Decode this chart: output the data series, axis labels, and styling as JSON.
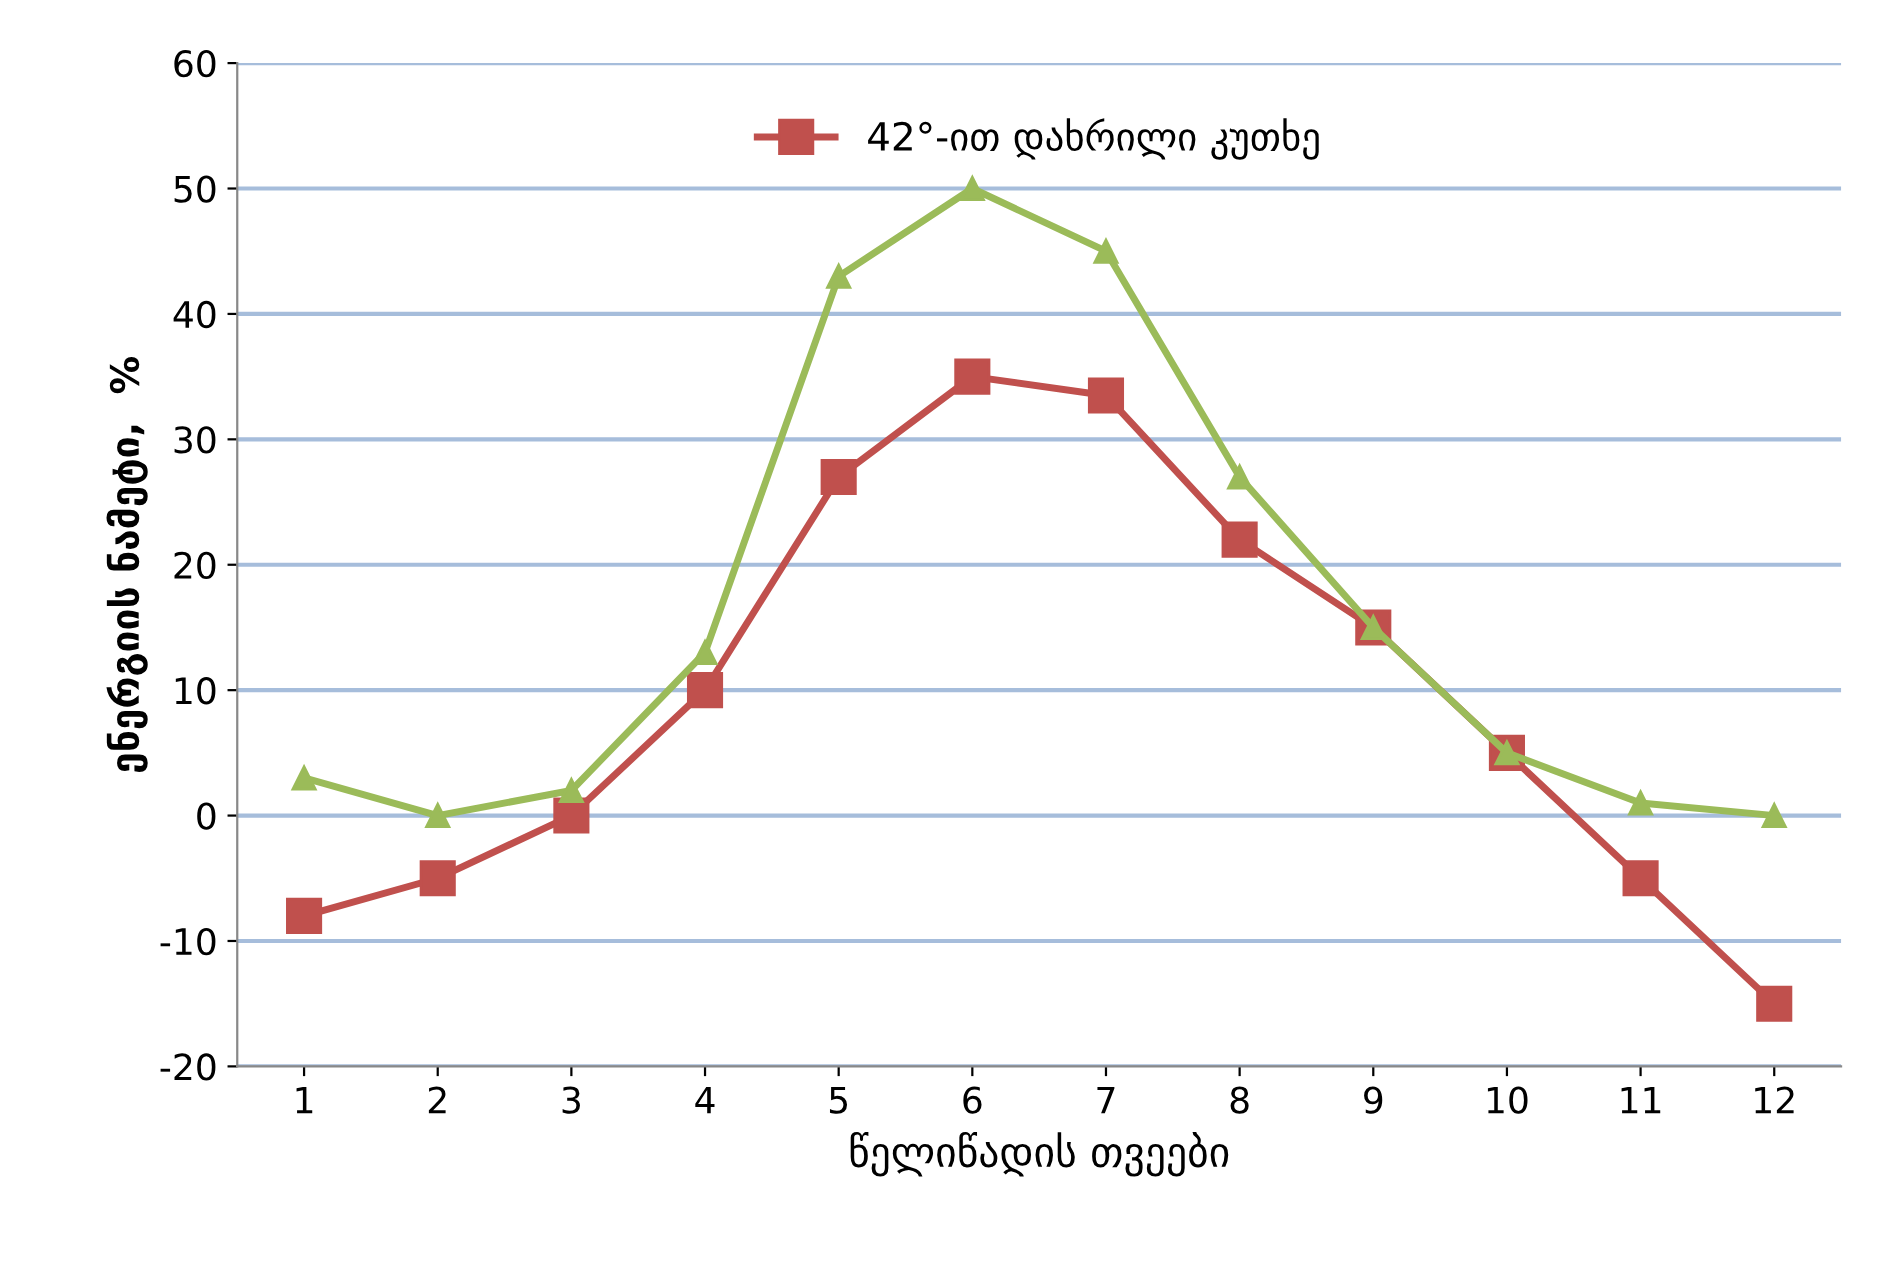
{
  "chart_data": {
    "type": "line",
    "xlabel": "წელიწადის თვეები",
    "ylabel": "ენერგიის ნამეტი,  %",
    "categories": [
      "1",
      "2",
      "3",
      "4",
      "5",
      "6",
      "7",
      "8",
      "9",
      "10",
      "11",
      "12"
    ],
    "series": [
      {
        "name": "42°-ით დახრილი კუთხე",
        "color": "#c0504d",
        "marker": "square",
        "values": [
          -8,
          -5,
          0,
          10,
          27,
          35,
          33.5,
          22,
          15,
          5,
          -5,
          -15
        ]
      },
      {
        "color": "#9bbb59",
        "marker": "triangle",
        "values": [
          3,
          0,
          2,
          13,
          43,
          50,
          45,
          27,
          15,
          5,
          1,
          0
        ]
      }
    ],
    "ylim": [
      -20,
      60
    ],
    "yticks": [
      -20,
      -10,
      0,
      10,
      20,
      30,
      40,
      50,
      60
    ],
    "grid": "y",
    "legend": "top",
    "line_style": "solid"
  }
}
